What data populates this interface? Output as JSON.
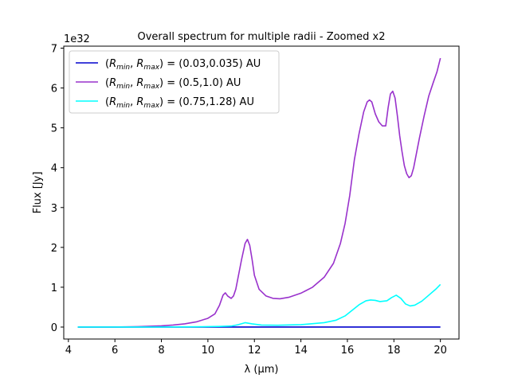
{
  "chart_data": {
    "type": "line",
    "title": "Overall spectrum for multiple radii - Zoomed x2",
    "xlabel": "λ (μm)",
    "ylabel": "Flux [Jy]",
    "y_offset_label": "1e32",
    "xlim": [
      3.8,
      20.8
    ],
    "ylim": [
      -0.3,
      7.05
    ],
    "xticks": [
      4,
      6,
      8,
      10,
      12,
      14,
      16,
      18,
      20
    ],
    "yticks": [
      0,
      1,
      2,
      3,
      4,
      5,
      6,
      7
    ],
    "grid": false,
    "legend_position": "top-left",
    "series": [
      {
        "name": "(Rmin, Rmax) = (0.03,0.035) AU",
        "legend": {
          "pre": "(",
          "r1": "R",
          "s1": "min",
          "mid": ", ",
          "r2": "R",
          "s2": "max",
          "post": ") = (0.03,0.035) AU"
        },
        "color": "#0000cd",
        "x": [
          4.4,
          6,
          8,
          10,
          12,
          14,
          16,
          18,
          20
        ],
        "y": [
          0.0,
          0.0,
          0.0,
          0.0,
          0.0,
          0.0,
          0.0,
          0.0,
          0.0
        ]
      },
      {
        "name": "(Rmin, Rmax) = (0.5,1.0) AU",
        "legend": {
          "pre": "(",
          "r1": "R",
          "s1": "min",
          "mid": ", ",
          "r2": "R",
          "s2": "max",
          "post": ") = (0.5,1.0) AU"
        },
        "color": "#9932cc",
        "x": [
          4.4,
          6.0,
          7.0,
          8.0,
          8.5,
          9.0,
          9.5,
          10.0,
          10.3,
          10.5,
          10.65,
          10.75,
          10.85,
          11.0,
          11.1,
          11.2,
          11.3,
          11.45,
          11.6,
          11.7,
          11.8,
          11.9,
          12.0,
          12.2,
          12.5,
          12.8,
          13.1,
          13.5,
          14.0,
          14.5,
          15.0,
          15.4,
          15.7,
          15.9,
          16.1,
          16.3,
          16.5,
          16.7,
          16.85,
          16.95,
          17.05,
          17.2,
          17.35,
          17.5,
          17.65,
          17.75,
          17.85,
          17.95,
          18.05,
          18.15,
          18.25,
          18.35,
          18.45,
          18.55,
          18.65,
          18.75,
          18.85,
          18.95,
          19.1,
          19.3,
          19.5,
          19.7,
          19.85,
          20.0
        ],
        "y": [
          0.0,
          0.0,
          0.01,
          0.03,
          0.05,
          0.08,
          0.13,
          0.22,
          0.33,
          0.55,
          0.8,
          0.86,
          0.78,
          0.72,
          0.78,
          0.95,
          1.25,
          1.7,
          2.1,
          2.2,
          2.05,
          1.7,
          1.3,
          0.95,
          0.78,
          0.72,
          0.71,
          0.75,
          0.85,
          1.0,
          1.25,
          1.6,
          2.1,
          2.6,
          3.3,
          4.2,
          4.85,
          5.4,
          5.65,
          5.7,
          5.65,
          5.35,
          5.15,
          5.05,
          5.05,
          5.5,
          5.85,
          5.92,
          5.75,
          5.3,
          4.8,
          4.4,
          4.05,
          3.85,
          3.75,
          3.8,
          4.0,
          4.3,
          4.75,
          5.3,
          5.8,
          6.15,
          6.4,
          6.75
        ]
      },
      {
        "name": "(Rmin, Rmax) = (0.75,1.28) AU",
        "legend": {
          "pre": "(",
          "r1": "R",
          "s1": "min",
          "mid": ", ",
          "r2": "R",
          "s2": "max",
          "post": ") = (0.75,1.28) AU"
        },
        "color": "#00ffff",
        "x": [
          4.4,
          6.0,
          8.0,
          10.0,
          10.5,
          11.0,
          11.3,
          11.6,
          11.9,
          12.3,
          13.0,
          14.0,
          15.0,
          15.5,
          15.9,
          16.2,
          16.5,
          16.8,
          17.0,
          17.2,
          17.4,
          17.7,
          17.9,
          18.1,
          18.3,
          18.5,
          18.7,
          18.9,
          19.2,
          19.5,
          19.8,
          20.0
        ],
        "y": [
          0.0,
          0.0,
          0.0,
          0.01,
          0.015,
          0.025,
          0.06,
          0.11,
          0.08,
          0.05,
          0.045,
          0.06,
          0.11,
          0.17,
          0.28,
          0.42,
          0.56,
          0.66,
          0.68,
          0.67,
          0.64,
          0.66,
          0.74,
          0.8,
          0.72,
          0.58,
          0.53,
          0.55,
          0.65,
          0.8,
          0.95,
          1.07
        ]
      }
    ]
  }
}
